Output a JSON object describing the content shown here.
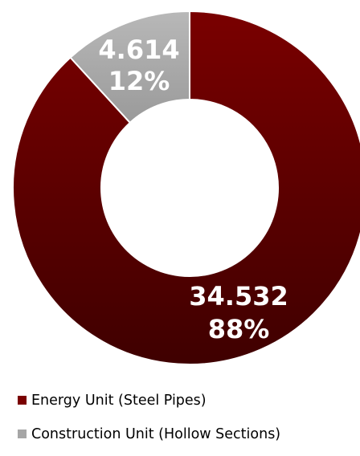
{
  "chart_data": {
    "type": "pie",
    "donut": true,
    "title": "",
    "slices": [
      {
        "label": "Energy Unit (Steel Pipes)",
        "value": 34.532,
        "value_label": "34.532",
        "percent_label": "88%",
        "color_top": "#7a0000",
        "color_bottom": "#3f0000",
        "legend_color": "#7a0000"
      },
      {
        "label": "Construction Unit (Hollow Sections)",
        "value": 4.614,
        "value_label": "4.614",
        "percent_label": "12%",
        "color_top": "#b8b8b8",
        "color_bottom": "#9a9a9a",
        "legend_color": "#a6a6a6"
      }
    ],
    "legend_position": "bottom",
    "start_angle_deg": 0,
    "direction": "clockwise"
  }
}
